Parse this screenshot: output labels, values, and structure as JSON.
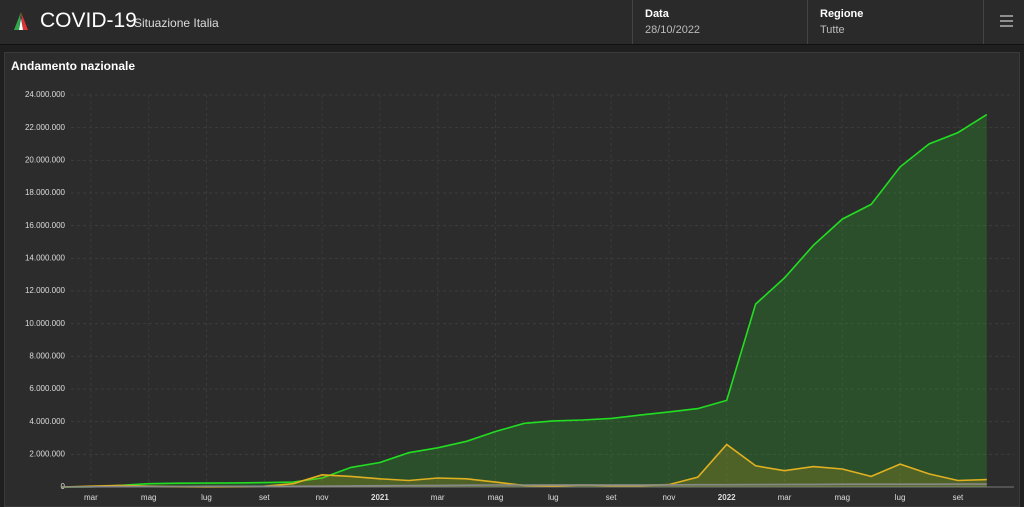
{
  "header": {
    "title": "COVID-19",
    "subtitle": "Situazione Italia",
    "date_label": "Data",
    "date_value": "28/10/2022",
    "region_label": "Regione",
    "region_value": "Tutte"
  },
  "chart_data": {
    "type": "line",
    "title": "Andamento nazionale",
    "categories": [
      null,
      "mar",
      null,
      "mag",
      null,
      "lug",
      null,
      "set",
      null,
      "nov",
      null,
      "2021",
      null,
      "mar",
      null,
      "mag",
      null,
      "lug",
      null,
      "set",
      null,
      "nov",
      null,
      "2022",
      null,
      "mar",
      null,
      "mag",
      null,
      "lug",
      null,
      "set",
      null
    ],
    "series": [
      {
        "color": "#22dd22",
        "values": [
          0,
          0.01,
          0.1,
          0.2,
          0.23,
          0.24,
          0.25,
          0.27,
          0.3,
          0.55,
          1.2,
          1.5,
          2.1,
          2.4,
          2.8,
          3.4,
          3.9,
          4.05,
          4.1,
          4.2,
          4.4,
          4.6,
          4.8,
          5.3,
          11.2,
          12.8,
          14.8,
          16.4,
          17.3,
          19.6,
          21.0,
          21.7,
          22.8
        ]
      },
      {
        "color": "#e0b020",
        "values": [
          0,
          0.05,
          0.1,
          0.05,
          0.02,
          0.01,
          0.02,
          0.05,
          0.2,
          0.75,
          0.65,
          0.5,
          0.4,
          0.55,
          0.5,
          0.3,
          0.1,
          0.05,
          0.12,
          0.08,
          0.08,
          0.15,
          0.6,
          2.6,
          1.3,
          1.0,
          1.25,
          1.1,
          0.65,
          1.4,
          0.8,
          0.4,
          0.45
        ]
      },
      {
        "color": "#888888",
        "values": [
          0,
          0.01,
          0.03,
          0.03,
          0.03,
          0.04,
          0.04,
          0.04,
          0.04,
          0.05,
          0.07,
          0.08,
          0.09,
          0.1,
          0.11,
          0.12,
          0.12,
          0.13,
          0.13,
          0.13,
          0.13,
          0.13,
          0.14,
          0.14,
          0.15,
          0.16,
          0.16,
          0.17,
          0.17,
          0.17,
          0.17,
          0.18,
          0.18
        ]
      }
    ],
    "ylim": [
      0,
      24
    ],
    "yticks": [
      0,
      {
        "value": 2,
        "label": "2.000.000"
      },
      {
        "value": 4,
        "label": "4.000.000"
      },
      {
        "value": 6,
        "label": "6.000.000"
      },
      {
        "value": 8,
        "label": "8.000.000"
      },
      {
        "value": 10,
        "label": "10.000.000"
      },
      {
        "value": 12,
        "label": "12.000.000"
      },
      {
        "value": 14,
        "label": "14.000.000"
      },
      {
        "value": 16,
        "label": "16.000.000"
      },
      {
        "value": 18,
        "label": "18.000.000"
      },
      {
        "value": 20,
        "label": "20.000.000"
      },
      {
        "value": 22,
        "label": "22.000.000"
      },
      {
        "value": 24,
        "label": "24.000.000"
      }
    ],
    "grid": true
  }
}
